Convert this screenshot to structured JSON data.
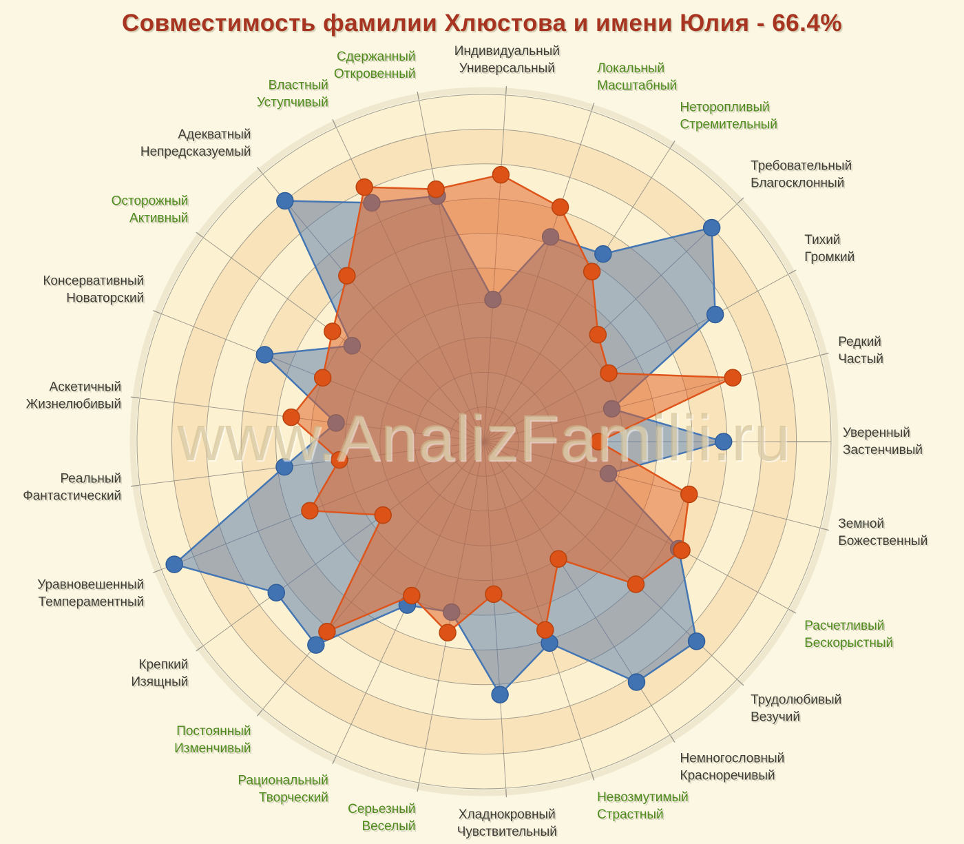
{
  "page": {
    "title": "Совместимость фамилии Хлюстова и имени Юлия - 66.4%",
    "watermark": "www.AnalizFamilii.ru"
  },
  "chart_data": {
    "type": "radar",
    "title": "Совместимость фамилии Хлюстова и имени Юлия - 66.4%",
    "compatibility_percent": 66.4,
    "axes_count": 25,
    "start_angle_deg": 3.6,
    "direction": "clockwise",
    "scale": {
      "min": 0,
      "max": 100,
      "rings": 10
    },
    "legend_position": "none",
    "grid": "polar-rings-and-spokes",
    "axes": [
      {
        "top": "Индивидуальный",
        "bottom": "Универсальный",
        "label_color": "dark"
      },
      {
        "top": "Локальный",
        "bottom": "Масштабный",
        "label_color": "green"
      },
      {
        "top": "Неторопливый",
        "bottom": "Стремительный",
        "label_color": "green"
      },
      {
        "top": "Требовательный",
        "bottom": "Благосклонный",
        "label_color": "dark"
      },
      {
        "top": "Тихий",
        "bottom": "Громкий",
        "label_color": "dark"
      },
      {
        "top": "Редкий",
        "bottom": "Частый",
        "label_color": "dark"
      },
      {
        "top": "Уверенный",
        "bottom": "Застенчивый",
        "label_color": "dark"
      },
      {
        "top": "Земной",
        "bottom": "Божественный",
        "label_color": "dark"
      },
      {
        "top": "Расчетливый",
        "bottom": "Бескорыстный",
        "label_color": "green"
      },
      {
        "top": "Трудолюбивый",
        "bottom": "Везучий",
        "label_color": "dark"
      },
      {
        "top": "Немногословный",
        "bottom": "Красноречивый",
        "label_color": "dark"
      },
      {
        "top": "Невозмутимый",
        "bottom": "Страстный",
        "label_color": "green"
      },
      {
        "top": "Хладнокровный",
        "bottom": "Чувствительный",
        "label_color": "dark"
      },
      {
        "top": "Серьезный",
        "bottom": "Веселый",
        "label_color": "green"
      },
      {
        "top": "Рациональный",
        "bottom": "Творческий",
        "label_color": "green"
      },
      {
        "top": "Постоянный",
        "bottom": "Изменчивый",
        "label_color": "green"
      },
      {
        "top": "Крепкий",
        "bottom": "Изящный",
        "label_color": "dark"
      },
      {
        "top": "Уравновешенный",
        "bottom": "Темпераментный",
        "label_color": "dark"
      },
      {
        "top": "Реальный",
        "bottom": "Фантастический",
        "label_color": "dark"
      },
      {
        "top": "Аскетичный",
        "bottom": "Жизнелюбивый",
        "label_color": "dark"
      },
      {
        "top": "Консервативный",
        "bottom": "Новаторский",
        "label_color": "dark"
      },
      {
        "top": "Осторожный",
        "bottom": "Активный",
        "label_color": "green"
      },
      {
        "top": "Адекватный",
        "bottom": "Непредсказуемый",
        "label_color": "dark"
      },
      {
        "top": "Властный",
        "bottom": "Уступчивый",
        "label_color": "green"
      },
      {
        "top": "Сдержанный",
        "bottom": "Откровенный",
        "label_color": "green"
      }
    ],
    "series": [
      {
        "name": "blue",
        "stroke": "#4576B4",
        "fill": "rgba(80,116,167,0.48)",
        "marker": "#4173B3",
        "marker_edge": "#2F5D99",
        "values": [
          41,
          62,
          64,
          90,
          76,
          38,
          69,
          37,
          64,
          84,
          82,
          61,
          73,
          50,
          52,
          76,
          74,
          96,
          58,
          43,
          68,
          47,
          90,
          76,
          72
        ]
      },
      {
        "name": "orange",
        "stroke": "#DE551C",
        "fill": "rgba(224,98,38,0.52)",
        "marker": "#DD5317",
        "marker_edge": "#B8430E",
        "values": [
          77,
          71,
          58,
          45,
          41,
          74,
          33,
          61,
          65,
          60,
          40,
          57,
          44,
          56,
          49,
          71,
          36,
          54,
          42,
          56,
          50,
          54,
          62,
          81,
          74
        ]
      }
    ],
    "colors": {
      "page_bg": "#FBF7E3",
      "band_light": "#FCF2D2",
      "band_dark": "#F8E3BB",
      "halo": "#EFE8CF",
      "grid": "#8F8B80",
      "title": "#A63420",
      "label_green": "#4E8A1C",
      "label_dark": "#3E3E36",
      "watermark": "rgba(205,186,142,0.6)"
    }
  }
}
